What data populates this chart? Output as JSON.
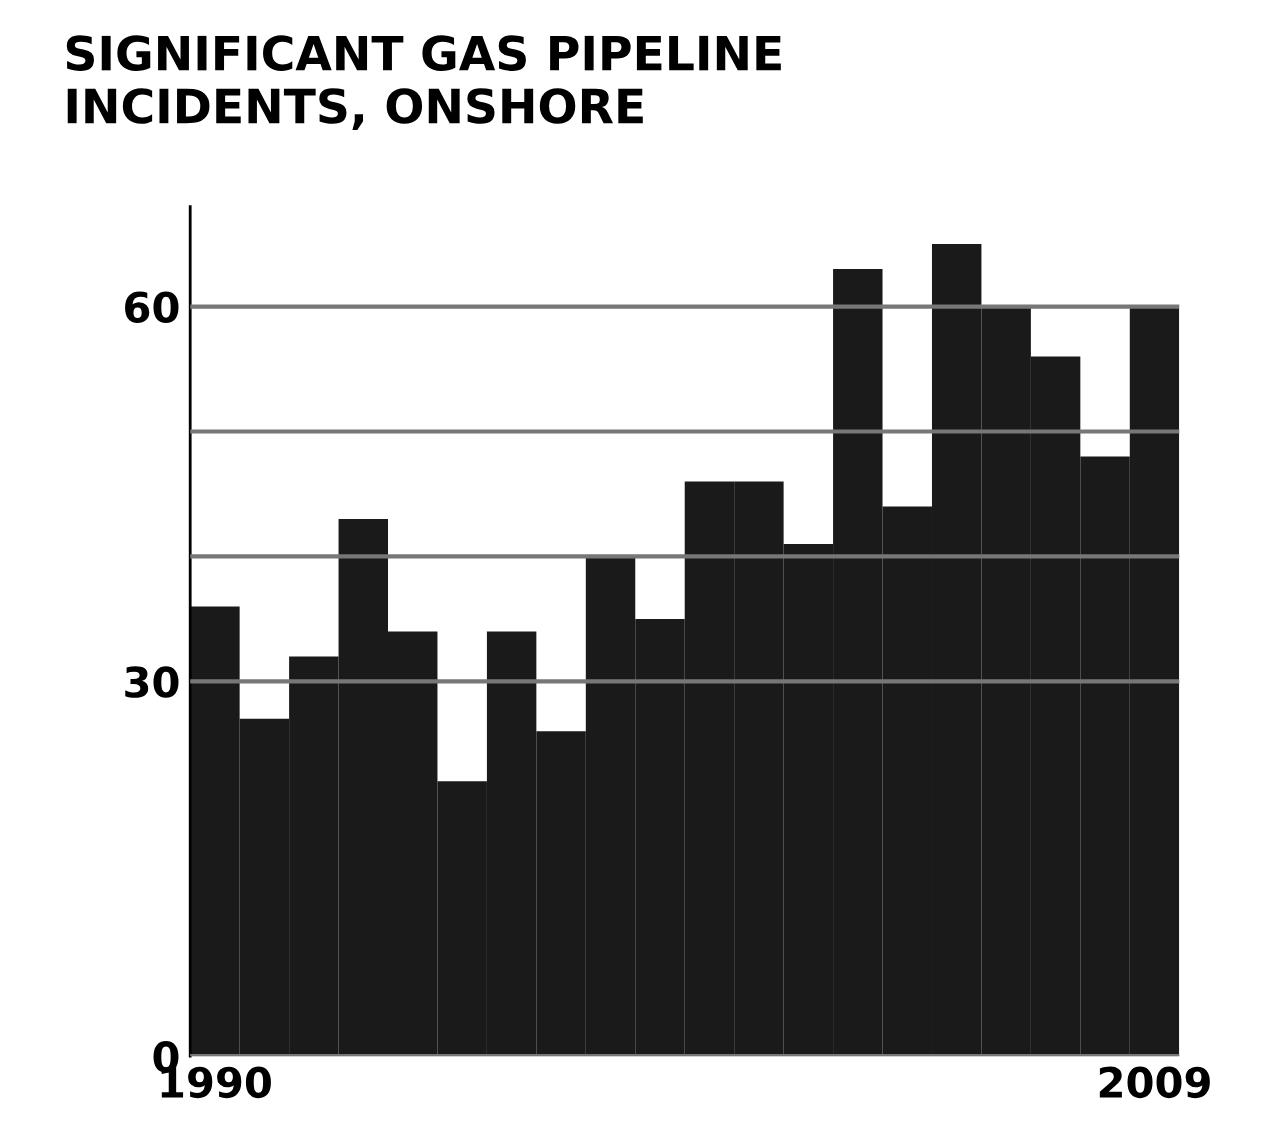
{
  "chart_data": {
    "type": "bar",
    "title": "SIGNIFICANT GAS PIPELINE\nINCIDENTS, ONSHORE",
    "categories": [
      "1990",
      null,
      null,
      null,
      null,
      null,
      null,
      null,
      null,
      null,
      null,
      null,
      null,
      null,
      null,
      null,
      null,
      null,
      null,
      "2009"
    ],
    "values": [
      36,
      27,
      32,
      43,
      34,
      22,
      34,
      26,
      40,
      35,
      46,
      46,
      41,
      63,
      44,
      65,
      60,
      56,
      48,
      60
    ],
    "color": "#1a1a1a",
    "ylim": [
      0,
      68
    ],
    "yticks": [
      0,
      30,
      {
        "value": 40,
        "label": null
      },
      {
        "value": 50,
        "label": null
      },
      60
    ],
    "grid": "y"
  }
}
